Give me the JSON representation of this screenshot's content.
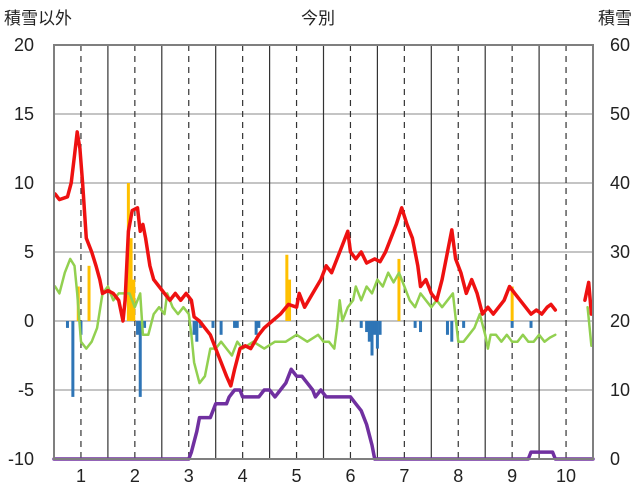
{
  "chart_data": {
    "type": "line",
    "title": "今別",
    "ylabel_left": "積雪以外",
    "ylabel_right": "積雪",
    "x_ticks": [
      "1",
      "2",
      "3",
      "4",
      "5",
      "6",
      "7",
      "8",
      "9",
      "10"
    ],
    "xlim": [
      0.5,
      10.5
    ],
    "ylim_left": [
      -10,
      20
    ],
    "ylim_right": [
      0,
      60
    ],
    "y_ticks_left": [
      "20",
      "15",
      "10",
      "5",
      "0",
      "-5",
      "-10"
    ],
    "y_ticks_right": [
      "60",
      "50",
      "40",
      "30",
      "20",
      "10",
      "0"
    ],
    "grid": true,
    "colors": {
      "red": "#ee1111",
      "green": "#92d050",
      "purple": "#7030a0",
      "orange": "#ffc000",
      "blue": "#2e75b6",
      "grid": "#333333",
      "frame": "#7f7f7f"
    },
    "series": [
      {
        "role": "red_line",
        "color": "#ee1111",
        "segments": [
          [
            [
              0.52,
              9.2
            ],
            [
              0.6,
              8.8
            ],
            [
              0.75,
              9.0
            ],
            [
              0.82,
              10.0
            ],
            [
              0.88,
              12.0
            ],
            [
              0.93,
              13.7
            ],
            [
              0.98,
              12.5
            ],
            [
              1.03,
              10.0
            ],
            [
              1.1,
              6.0
            ],
            [
              1.2,
              5.0
            ],
            [
              1.28,
              4.0
            ],
            [
              1.35,
              3.0
            ],
            [
              1.4,
              2.0
            ],
            [
              1.5,
              2.2
            ],
            [
              1.6,
              2.0
            ],
            [
              1.7,
              1.5
            ],
            [
              1.78,
              0.0
            ],
            [
              1.82,
              1.5
            ],
            [
              1.88,
              6.5
            ],
            [
              1.95,
              8.0
            ],
            [
              2.05,
              8.2
            ],
            [
              2.1,
              6.5
            ],
            [
              2.15,
              7.0
            ],
            [
              2.2,
              6.0
            ],
            [
              2.28,
              4.0
            ],
            [
              2.35,
              3.0
            ],
            [
              2.45,
              2.5
            ],
            [
              2.55,
              2.0
            ],
            [
              2.65,
              1.5
            ],
            [
              2.75,
              2.0
            ],
            [
              2.85,
              1.5
            ],
            [
              2.95,
              2.0
            ],
            [
              3.05,
              1.5
            ],
            [
              3.1,
              0.3
            ],
            [
              3.2,
              0.0
            ],
            [
              3.3,
              -0.5
            ],
            [
              3.4,
              -1.0
            ],
            [
              3.5,
              -2.0
            ],
            [
              3.6,
              -3.0
            ],
            [
              3.7,
              -4.0
            ],
            [
              3.78,
              -4.7
            ],
            [
              3.85,
              -3.5
            ],
            [
              3.95,
              -2.0
            ],
            [
              4.05,
              -1.8
            ],
            [
              4.15,
              -2.0
            ],
            [
              4.3,
              -1.0
            ],
            [
              4.4,
              -0.5
            ],
            [
              4.55,
              0.0
            ],
            [
              4.7,
              0.5
            ],
            [
              4.85,
              1.2
            ],
            [
              5.0,
              1.0
            ],
            [
              5.05,
              2.0
            ],
            [
              5.15,
              1.0
            ],
            [
              5.3,
              2.0
            ],
            [
              5.45,
              3.0
            ],
            [
              5.55,
              4.0
            ],
            [
              5.65,
              3.5
            ],
            [
              5.75,
              4.5
            ],
            [
              5.85,
              5.5
            ],
            [
              5.95,
              6.5
            ],
            [
              6.0,
              5.0
            ],
            [
              6.1,
              4.5
            ],
            [
              6.2,
              5.0
            ],
            [
              6.3,
              4.2
            ],
            [
              6.45,
              4.5
            ],
            [
              6.55,
              4.3
            ],
            [
              6.65,
              5.0
            ],
            [
              6.75,
              6.0
            ],
            [
              6.85,
              7.0
            ],
            [
              6.95,
              8.2
            ],
            [
              7.05,
              7.0
            ],
            [
              7.15,
              6.0
            ],
            [
              7.25,
              4.0
            ],
            [
              7.3,
              2.5
            ],
            [
              7.4,
              3.0
            ],
            [
              7.5,
              2.0
            ],
            [
              7.6,
              1.5
            ],
            [
              7.7,
              3.0
            ],
            [
              7.8,
              5.0
            ],
            [
              7.88,
              6.6
            ],
            [
              7.95,
              4.5
            ],
            [
              8.05,
              3.5
            ],
            [
              8.15,
              2.0
            ],
            [
              8.25,
              3.0
            ],
            [
              8.35,
              2.0
            ],
            [
              8.45,
              0.5
            ],
            [
              8.55,
              1.0
            ],
            [
              8.65,
              0.5
            ],
            [
              8.75,
              1.0
            ],
            [
              8.85,
              1.5
            ],
            [
              8.95,
              2.5
            ],
            [
              9.05,
              2.0
            ],
            [
              9.15,
              1.5
            ],
            [
              9.25,
              1.0
            ],
            [
              9.35,
              0.5
            ],
            [
              9.45,
              0.8
            ],
            [
              9.55,
              0.5
            ],
            [
              9.65,
              1.0
            ],
            [
              9.72,
              1.2
            ],
            [
              9.8,
              0.8
            ]
          ],
          [
            [
              10.35,
              1.5
            ],
            [
              10.42,
              2.8
            ],
            [
              10.47,
              0.5
            ]
          ]
        ]
      },
      {
        "role": "green_line",
        "color": "#92d050",
        "segments": [
          [
            [
              0.52,
              2.5
            ],
            [
              0.6,
              2.0
            ],
            [
              0.7,
              3.5
            ],
            [
              0.8,
              4.5
            ],
            [
              0.88,
              4.0
            ],
            [
              0.93,
              2.0
            ],
            [
              1.0,
              -1.5
            ],
            [
              1.1,
              -2.0
            ],
            [
              1.2,
              -1.5
            ],
            [
              1.3,
              -0.5
            ],
            [
              1.4,
              2.0
            ],
            [
              1.5,
              2.5
            ],
            [
              1.6,
              1.5
            ],
            [
              1.7,
              2.0
            ],
            [
              1.8,
              2.0
            ],
            [
              1.9,
              2.0
            ],
            [
              2.0,
              1.0
            ],
            [
              2.1,
              2.0
            ],
            [
              2.15,
              -1.0
            ],
            [
              2.25,
              -1.0
            ],
            [
              2.35,
              0.5
            ],
            [
              2.45,
              1.0
            ],
            [
              2.55,
              0.5
            ],
            [
              2.6,
              2.0
            ],
            [
              2.7,
              1.0
            ],
            [
              2.8,
              0.5
            ],
            [
              2.9,
              1.0
            ],
            [
              3.0,
              0.5
            ],
            [
              3.05,
              -1.0
            ],
            [
              3.1,
              -3.0
            ],
            [
              3.2,
              -4.5
            ],
            [
              3.3,
              -4.0
            ],
            [
              3.4,
              -2.0
            ],
            [
              3.5,
              -2.0
            ],
            [
              3.6,
              -1.5
            ],
            [
              3.7,
              -2.0
            ],
            [
              3.8,
              -2.5
            ],
            [
              3.9,
              -1.5
            ],
            [
              4.0,
              -2.0
            ],
            [
              4.2,
              -1.5
            ],
            [
              4.4,
              -2.0
            ],
            [
              4.6,
              -1.5
            ],
            [
              4.8,
              -1.5
            ],
            [
              5.0,
              -1.0
            ],
            [
              5.2,
              -1.5
            ],
            [
              5.4,
              -1.0
            ],
            [
              5.5,
              -1.5
            ],
            [
              5.6,
              -1.5
            ],
            [
              5.7,
              -2.0
            ],
            [
              5.75,
              -0.5
            ],
            [
              5.8,
              1.5
            ],
            [
              5.85,
              0.0
            ],
            [
              5.95,
              1.0
            ],
            [
              6.05,
              1.5
            ],
            [
              6.1,
              2.5
            ],
            [
              6.2,
              1.5
            ],
            [
              6.3,
              2.5
            ],
            [
              6.4,
              2.0
            ],
            [
              6.5,
              3.0
            ],
            [
              6.6,
              2.5
            ],
            [
              6.7,
              3.5
            ],
            [
              6.8,
              2.8
            ],
            [
              6.9,
              3.5
            ],
            [
              7.0,
              2.5
            ],
            [
              7.1,
              1.5
            ],
            [
              7.2,
              1.0
            ],
            [
              7.3,
              2.0
            ],
            [
              7.4,
              1.5
            ],
            [
              7.5,
              1.0
            ],
            [
              7.6,
              1.5
            ],
            [
              7.7,
              1.0
            ],
            [
              7.8,
              1.5
            ],
            [
              7.9,
              2.0
            ],
            [
              8.0,
              -1.5
            ],
            [
              8.1,
              -1.5
            ],
            [
              8.2,
              -1.0
            ],
            [
              8.3,
              -0.5
            ],
            [
              8.4,
              0.5
            ],
            [
              8.5,
              -1.0
            ],
            [
              8.55,
              -2.0
            ],
            [
              8.6,
              -1.0
            ],
            [
              8.7,
              -1.0
            ],
            [
              8.8,
              -1.5
            ],
            [
              8.9,
              -1.0
            ],
            [
              9.0,
              -1.5
            ],
            [
              9.1,
              -1.5
            ],
            [
              9.2,
              -1.0
            ],
            [
              9.3,
              -1.5
            ],
            [
              9.4,
              -1.5
            ],
            [
              9.5,
              -1.0
            ],
            [
              9.6,
              -1.5
            ],
            [
              9.7,
              -1.2
            ],
            [
              9.8,
              -1.0
            ]
          ],
          [
            [
              10.4,
              1.0
            ],
            [
              10.47,
              -1.8
            ]
          ]
        ]
      },
      {
        "role": "purple_line_right_axis",
        "color": "#7030a0",
        "points": [
          [
            0.5,
            0
          ],
          [
            2.9,
            0
          ],
          [
            3.0,
            0
          ],
          [
            3.05,
            1
          ],
          [
            3.15,
            4
          ],
          [
            3.2,
            6
          ],
          [
            3.4,
            6
          ],
          [
            3.5,
            8
          ],
          [
            3.7,
            8
          ],
          [
            3.75,
            9
          ],
          [
            3.85,
            10
          ],
          [
            3.95,
            10
          ],
          [
            4.0,
            9
          ],
          [
            4.1,
            9
          ],
          [
            4.3,
            9
          ],
          [
            4.4,
            10
          ],
          [
            4.5,
            10
          ],
          [
            4.6,
            9
          ],
          [
            4.7,
            10
          ],
          [
            4.8,
            11
          ],
          [
            4.9,
            13
          ],
          [
            5.0,
            12
          ],
          [
            5.1,
            12
          ],
          [
            5.2,
            11
          ],
          [
            5.3,
            10
          ],
          [
            5.35,
            9
          ],
          [
            5.45,
            10
          ],
          [
            5.55,
            9
          ],
          [
            5.75,
            9
          ],
          [
            6.0,
            9
          ],
          [
            6.1,
            8
          ],
          [
            6.2,
            7
          ],
          [
            6.3,
            5
          ],
          [
            6.4,
            2
          ],
          [
            6.45,
            0
          ],
          [
            7.0,
            0
          ],
          [
            8.0,
            0
          ],
          [
            9.0,
            0
          ],
          [
            9.3,
            0
          ],
          [
            9.35,
            1
          ],
          [
            9.75,
            1
          ],
          [
            9.8,
            0
          ],
          [
            10.5,
            0
          ]
        ]
      },
      {
        "role": "orange_bars",
        "color": "#ffc000",
        "points": [
          [
            0.95,
            2.5
          ],
          [
            1.15,
            4.0
          ],
          [
            1.88,
            10.0
          ],
          [
            1.93,
            6.0
          ],
          [
            1.98,
            3.0
          ],
          [
            4.82,
            4.8
          ],
          [
            4.87,
            3.0
          ],
          [
            6.9,
            4.5
          ],
          [
            9.0,
            2.5
          ]
        ]
      },
      {
        "role": "blue_bars",
        "color": "#2e75b6",
        "points": [
          [
            0.75,
            -0.5
          ],
          [
            0.85,
            -5.5
          ],
          [
            1.0,
            -1.0
          ],
          [
            2.05,
            -1.0
          ],
          [
            2.1,
            -5.5
          ],
          [
            2.18,
            -0.5
          ],
          [
            3.1,
            -1.0
          ],
          [
            3.15,
            -1.5
          ],
          [
            3.22,
            -0.5
          ],
          [
            3.45,
            -0.5
          ],
          [
            3.6,
            -1.0
          ],
          [
            3.85,
            -0.5
          ],
          [
            3.9,
            -0.5
          ],
          [
            4.25,
            -1.0
          ],
          [
            4.3,
            -0.5
          ],
          [
            6.2,
            -0.5
          ],
          [
            6.3,
            -0.8
          ],
          [
            6.35,
            -1.5
          ],
          [
            6.4,
            -2.5
          ],
          [
            6.45,
            -1.0
          ],
          [
            6.5,
            -2.0
          ],
          [
            6.55,
            -1.0
          ],
          [
            7.2,
            -0.5
          ],
          [
            7.3,
            -0.8
          ],
          [
            7.8,
            -1.0
          ],
          [
            7.88,
            -1.5
          ],
          [
            8.1,
            -0.5
          ],
          [
            9.0,
            -0.5
          ],
          [
            9.35,
            -0.5
          ]
        ]
      }
    ]
  }
}
